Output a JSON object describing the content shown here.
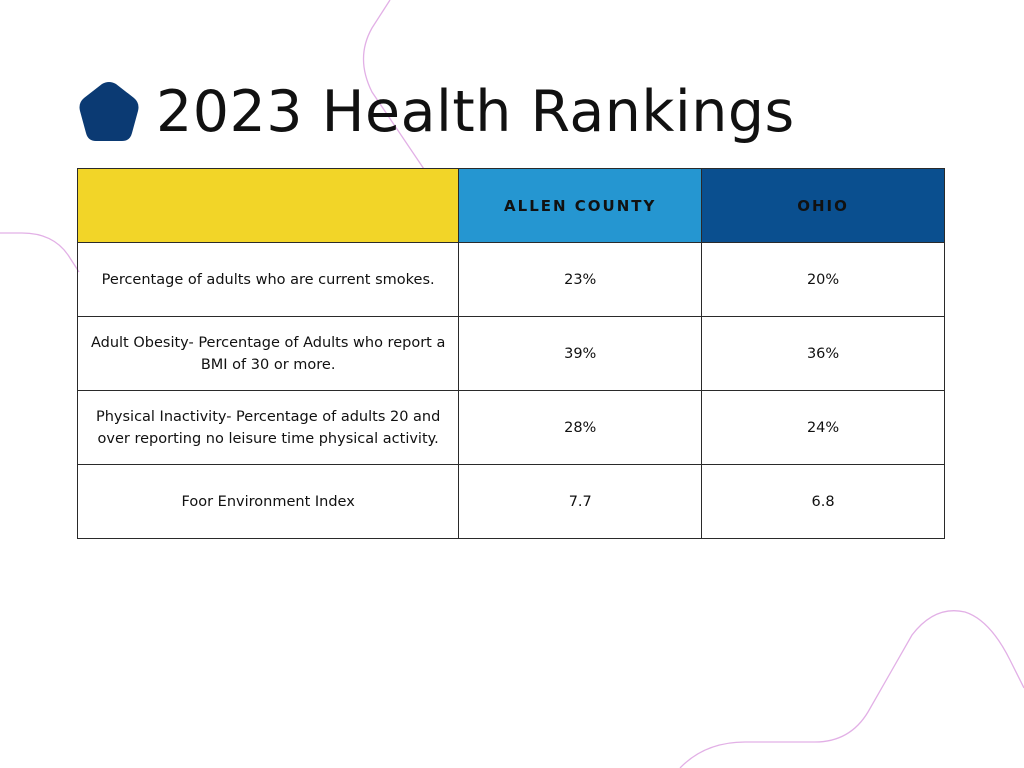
{
  "title": "2023 Health Rankings",
  "colors": {
    "logo": "#0b3a73",
    "header_blank": "#f2d528",
    "header_county": "#2596d1",
    "header_ohio": "#0a4f8f",
    "deco_line": "#e2b0e6"
  },
  "table": {
    "headers": [
      "",
      "ALLEN COUNTY",
      "OHIO"
    ],
    "rows": [
      {
        "label": "Percentage of adults who are current smokes.",
        "allen": "23%",
        "ohio": "20%"
      },
      {
        "label": "Adult Obesity- Percentage of Adults who report a BMI of 30 or more.",
        "allen": "39%",
        "ohio": "36%"
      },
      {
        "label": "Physical Inactivity- Percentage of adults 20 and over reporting no leisure time physical activity.",
        "allen": "28%",
        "ohio": "24%"
      },
      {
        "label": "Foor Environment Index",
        "allen": "7.7",
        "ohio": "6.8"
      }
    ]
  }
}
